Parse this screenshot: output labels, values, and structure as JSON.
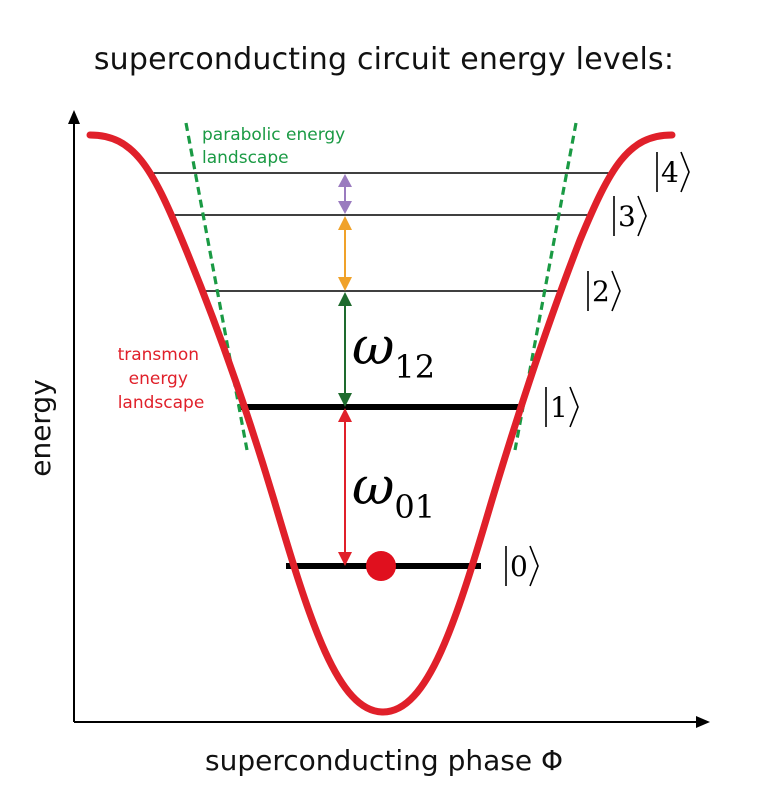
{
  "title": "superconducting circuit energy levels:",
  "axes": {
    "ylabel": "energy",
    "xlabel": "superconducting phase Φ"
  },
  "labels": {
    "parabolic": [
      "parabolic energy",
      "landscape"
    ],
    "transmon": [
      "transmon",
      "energy",
      "landscape"
    ]
  },
  "states": [
    {
      "ket": "|0⟩",
      "inner": "0"
    },
    {
      "ket": "|1⟩",
      "inner": "1"
    },
    {
      "ket": "|2⟩",
      "inner": "2"
    },
    {
      "ket": "|3⟩",
      "inner": "3"
    },
    {
      "ket": "|4⟩",
      "inner": "4"
    }
  ],
  "transitions": [
    {
      "symbol": "ω",
      "sub": "01",
      "color": "#e0202a"
    },
    {
      "symbol": "ω",
      "sub": "12",
      "color": "#1e6b2e"
    },
    {
      "color": "#f0a22a"
    },
    {
      "color": "#9a7bbf"
    }
  ],
  "colors": {
    "transmon": "#e0202a",
    "parabola": "#1a9a44",
    "level": "#000000",
    "particle": "#e0101e"
  }
}
